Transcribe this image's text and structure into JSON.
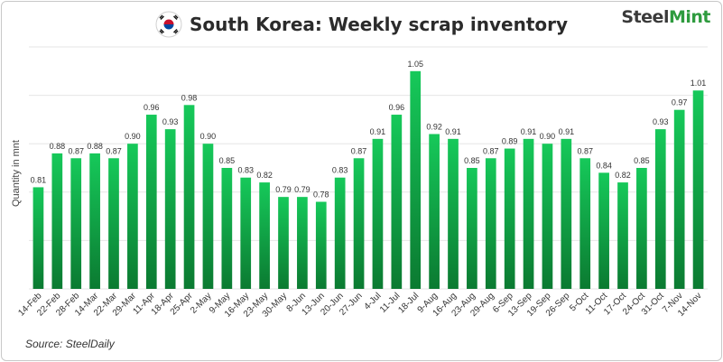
{
  "header": {
    "title": "South Korea: Weekly scrap inventory",
    "brand_left": "Steel",
    "brand_right": "Mint",
    "flag_icon": "south-korea-flag-icon"
  },
  "footer": {
    "source": "Source: SteelDaily"
  },
  "colors": {
    "bar_top": "#16c95a",
    "bar_bottom": "#0b7a31",
    "brand_green": "#2e9b3e",
    "text": "#2b2b2b"
  },
  "chart_data": {
    "type": "bar",
    "title": "South Korea: Weekly scrap inventory",
    "ylabel": "Quantity in mnt",
    "xlabel": "",
    "ylim": [
      0.6,
      1.1
    ],
    "grid": true,
    "legend": "none",
    "categories": [
      "14-Feb",
      "22-Feb",
      "28-Feb",
      "14-Mar",
      "22-Mar",
      "29-Mar",
      "11-Apr",
      "18-Apr",
      "25-Apr",
      "2-May",
      "9-May",
      "16-May",
      "23-May",
      "30-May",
      "8-Jun",
      "13-Jun",
      "20-Jun",
      "27-Jun",
      "4-Jul",
      "11-Jul",
      "18-Jul",
      "9-Aug",
      "16-Aug",
      "23-Aug",
      "29-Aug",
      "6-Sep",
      "13-Sep",
      "19-Sep",
      "26-Sep",
      "5-Oct",
      "11-Oct",
      "17-Oct",
      "24-Oct",
      "31-Oct",
      "7-Nov",
      "14-Nov"
    ],
    "values": [
      0.81,
      0.88,
      0.87,
      0.88,
      0.87,
      0.9,
      0.96,
      0.93,
      0.98,
      0.9,
      0.85,
      0.83,
      0.82,
      0.79,
      0.79,
      0.78,
      0.83,
      0.87,
      0.91,
      0.96,
      1.05,
      0.92,
      0.91,
      0.85,
      0.87,
      0.89,
      0.91,
      0.9,
      0.91,
      0.87,
      0.84,
      0.82,
      0.85,
      0.93,
      0.97,
      1.01
    ],
    "data_labels": [
      "0.81",
      "0.88",
      "0.87",
      "0.88",
      "0.87",
      "0.90",
      "0.96",
      "0.93",
      "0.98",
      "0.90",
      "0.85",
      "0.83",
      "0.82",
      "0.79",
      "0.79",
      "0.78",
      "0.83",
      "0.87",
      "0.91",
      "0.96",
      "1.05",
      "0.92",
      "0.91",
      "0.85",
      "0.87",
      "0.89",
      "0.91",
      "0.90",
      "0.91",
      "0.87",
      "0.84",
      "0.82",
      "0.85",
      "0.93",
      "0.97",
      "1.01"
    ]
  }
}
